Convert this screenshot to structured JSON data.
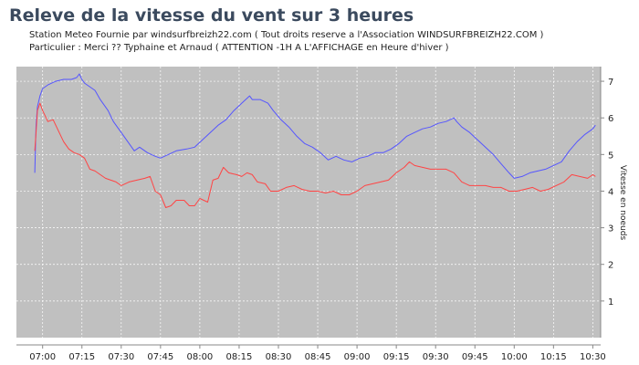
{
  "chart_data": {
    "type": "line",
    "title": "Releve de la vitesse du vent sur 3 heures",
    "subtitle_1": "Station Meteo Fournie  par windsurfbreizh22.com  ( Tout droits reserve a l'Association WINDSURFBREIZH22.COM )",
    "subtitle_2": "Particulier :  Merci ?? Typhaine et Arnaud  ( ATTENTION -1H A L'AFFICHAGE en Heure d'hiver )",
    "ylabel": "Vitesse en noeuds",
    "xlabel": "",
    "ylim": [
      0,
      7.4
    ],
    "y_ticks": [
      1,
      2,
      3,
      4,
      5,
      6,
      7
    ],
    "xlim": [
      "06:50",
      "10:33"
    ],
    "x_ticks": [
      "07:00",
      "07:15",
      "07:30",
      "07:45",
      "08:00",
      "08:15",
      "08:30",
      "08:45",
      "09:00",
      "09:15",
      "09:30",
      "09:45",
      "10:00",
      "10:15",
      "10:30"
    ],
    "grid": true,
    "background": "#c0c0c0",
    "series": [
      {
        "color": "#5555ff",
        "points": [
          [
            "06:57",
            4.5
          ],
          [
            "06:57:30",
            5.8
          ],
          [
            "06:58",
            6.3
          ],
          [
            "06:59",
            6.6
          ],
          [
            "07:00",
            6.8
          ],
          [
            "07:02",
            6.9
          ],
          [
            "07:05",
            7.0
          ],
          [
            "07:08",
            7.05
          ],
          [
            "07:11",
            7.05
          ],
          [
            "07:13",
            7.1
          ],
          [
            "07:14",
            7.2
          ],
          [
            "07:15",
            7.05
          ],
          [
            "07:16",
            6.95
          ],
          [
            "07:18",
            6.85
          ],
          [
            "07:20",
            6.75
          ],
          [
            "07:22",
            6.5
          ],
          [
            "07:25",
            6.2
          ],
          [
            "07:27",
            5.9
          ],
          [
            "07:30",
            5.6
          ],
          [
            "07:33",
            5.3
          ],
          [
            "07:35",
            5.1
          ],
          [
            "07:37",
            5.2
          ],
          [
            "07:40",
            5.05
          ],
          [
            "07:43",
            4.95
          ],
          [
            "07:45",
            4.9
          ],
          [
            "07:48",
            5.0
          ],
          [
            "07:51",
            5.1
          ],
          [
            "07:55",
            5.15
          ],
          [
            "07:58",
            5.2
          ],
          [
            "08:01",
            5.4
          ],
          [
            "08:04",
            5.6
          ],
          [
            "08:07",
            5.8
          ],
          [
            "08:10",
            5.95
          ],
          [
            "08:13",
            6.2
          ],
          [
            "08:16",
            6.4
          ],
          [
            "08:19",
            6.6
          ],
          [
            "08:20",
            6.5
          ],
          [
            "08:23",
            6.5
          ],
          [
            "08:26",
            6.4
          ],
          [
            "08:28",
            6.2
          ],
          [
            "08:31",
            5.95
          ],
          [
            "08:34",
            5.75
          ],
          [
            "08:37",
            5.5
          ],
          [
            "08:40",
            5.3
          ],
          [
            "08:43",
            5.2
          ],
          [
            "08:46",
            5.05
          ],
          [
            "08:49",
            4.85
          ],
          [
            "08:52",
            4.95
          ],
          [
            "08:55",
            4.85
          ],
          [
            "08:58",
            4.8
          ],
          [
            "09:01",
            4.9
          ],
          [
            "09:04",
            4.95
          ],
          [
            "09:07",
            5.05
          ],
          [
            "09:10",
            5.05
          ],
          [
            "09:13",
            5.15
          ],
          [
            "09:16",
            5.3
          ],
          [
            "09:19",
            5.5
          ],
          [
            "09:22",
            5.6
          ],
          [
            "09:25",
            5.7
          ],
          [
            "09:28",
            5.75
          ],
          [
            "09:31",
            5.85
          ],
          [
            "09:34",
            5.9
          ],
          [
            "09:37",
            6.0
          ],
          [
            "09:38",
            5.9
          ],
          [
            "09:40",
            5.75
          ],
          [
            "09:43",
            5.6
          ],
          [
            "09:46",
            5.4
          ],
          [
            "09:49",
            5.2
          ],
          [
            "09:52",
            5.0
          ],
          [
            "09:55",
            4.75
          ],
          [
            "09:58",
            4.5
          ],
          [
            "10:00",
            4.35
          ],
          [
            "10:03",
            4.4
          ],
          [
            "10:06",
            4.5
          ],
          [
            "10:09",
            4.55
          ],
          [
            "10:12",
            4.6
          ],
          [
            "10:15",
            4.7
          ],
          [
            "10:18",
            4.8
          ],
          [
            "10:21",
            5.1
          ],
          [
            "10:24",
            5.35
          ],
          [
            "10:27",
            5.55
          ],
          [
            "10:30",
            5.7
          ],
          [
            "10:31",
            5.8
          ]
        ]
      },
      {
        "color": "#ff4444",
        "points": [
          [
            "06:57",
            5.1
          ],
          [
            "06:57:30",
            5.6
          ],
          [
            "06:58",
            6.2
          ],
          [
            "06:59",
            6.4
          ],
          [
            "07:00",
            6.2
          ],
          [
            "07:01",
            6.05
          ],
          [
            "07:02",
            5.9
          ],
          [
            "07:04",
            5.95
          ],
          [
            "07:06",
            5.65
          ],
          [
            "07:08",
            5.35
          ],
          [
            "07:10",
            5.15
          ],
          [
            "07:12",
            5.05
          ],
          [
            "07:14",
            5.0
          ],
          [
            "07:16",
            4.9
          ],
          [
            "07:18",
            4.6
          ],
          [
            "07:20",
            4.55
          ],
          [
            "07:22",
            4.45
          ],
          [
            "07:24",
            4.35
          ],
          [
            "07:26",
            4.3
          ],
          [
            "07:28",
            4.25
          ],
          [
            "07:30",
            4.15
          ],
          [
            "07:33",
            4.25
          ],
          [
            "07:36",
            4.3
          ],
          [
            "07:39",
            4.35
          ],
          [
            "07:41",
            4.4
          ],
          [
            "07:43",
            4.0
          ],
          [
            "07:45",
            3.9
          ],
          [
            "07:47",
            3.55
          ],
          [
            "07:49",
            3.6
          ],
          [
            "07:51",
            3.75
          ],
          [
            "07:54",
            3.75
          ],
          [
            "07:56",
            3.6
          ],
          [
            "07:58",
            3.6
          ],
          [
            "08:00",
            3.8
          ],
          [
            "08:03",
            3.7
          ],
          [
            "08:05",
            4.3
          ],
          [
            "08:07",
            4.35
          ],
          [
            "08:09",
            4.65
          ],
          [
            "08:11",
            4.5
          ],
          [
            "08:14",
            4.45
          ],
          [
            "08:16",
            4.4
          ],
          [
            "08:18",
            4.5
          ],
          [
            "08:20",
            4.45
          ],
          [
            "08:22",
            4.25
          ],
          [
            "08:25",
            4.2
          ],
          [
            "08:27",
            4.0
          ],
          [
            "08:30",
            4.0
          ],
          [
            "08:33",
            4.1
          ],
          [
            "08:36",
            4.15
          ],
          [
            "08:39",
            4.05
          ],
          [
            "08:42",
            4.0
          ],
          [
            "08:45",
            4.0
          ],
          [
            "08:48",
            3.95
          ],
          [
            "08:51",
            4.0
          ],
          [
            "08:54",
            3.9
          ],
          [
            "08:57",
            3.9
          ],
          [
            "09:00",
            4.0
          ],
          [
            "09:03",
            4.15
          ],
          [
            "09:06",
            4.2
          ],
          [
            "09:09",
            4.25
          ],
          [
            "09:12",
            4.3
          ],
          [
            "09:15",
            4.5
          ],
          [
            "09:18",
            4.65
          ],
          [
            "09:20",
            4.8
          ],
          [
            "09:22",
            4.7
          ],
          [
            "09:25",
            4.65
          ],
          [
            "09:28",
            4.6
          ],
          [
            "09:31",
            4.6
          ],
          [
            "09:34",
            4.6
          ],
          [
            "09:37",
            4.5
          ],
          [
            "09:40",
            4.25
          ],
          [
            "09:43",
            4.15
          ],
          [
            "09:46",
            4.15
          ],
          [
            "09:49",
            4.15
          ],
          [
            "09:52",
            4.1
          ],
          [
            "09:55",
            4.1
          ],
          [
            "09:58",
            4.0
          ],
          [
            "10:01",
            4.0
          ],
          [
            "10:04",
            4.05
          ],
          [
            "10:07",
            4.1
          ],
          [
            "10:10",
            4.0
          ],
          [
            "10:13",
            4.05
          ],
          [
            "10:16",
            4.15
          ],
          [
            "10:19",
            4.25
          ],
          [
            "10:22",
            4.45
          ],
          [
            "10:25",
            4.4
          ],
          [
            "10:28",
            4.35
          ],
          [
            "10:30",
            4.45
          ],
          [
            "10:31",
            4.4
          ]
        ]
      }
    ]
  }
}
